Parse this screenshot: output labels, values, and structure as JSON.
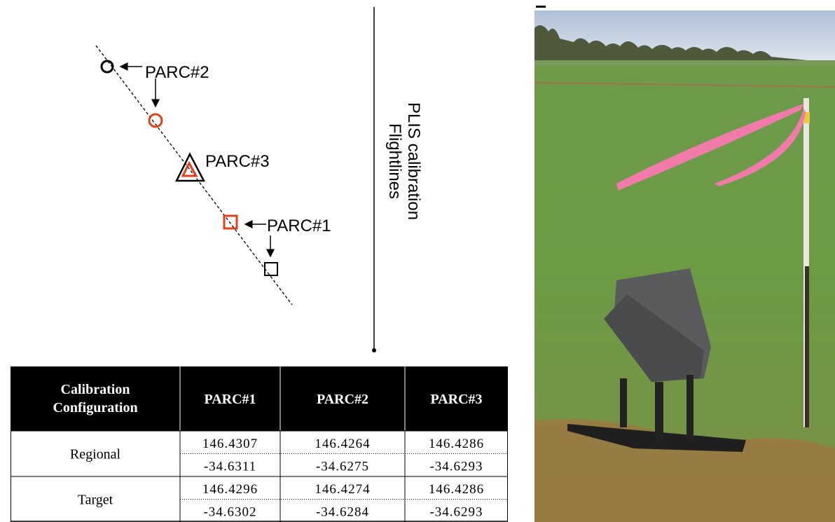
{
  "diagram": {
    "labels": {
      "parc2": "PARC#2",
      "parc3": "PARC#3",
      "parc1": "PARC#1"
    },
    "flightlines": [
      "PLIS calibration",
      "Flightlines"
    ]
  },
  "table": {
    "header": [
      [
        "Calibration",
        "Configuration"
      ],
      "PARC#1",
      "PARC#2",
      "PARC#3"
    ],
    "rows": [
      {
        "label": "Regional",
        "cells": [
          [
            "146.4307",
            "-34.6311"
          ],
          [
            "146.4264",
            "-34.6275"
          ],
          [
            "146.4286",
            "-34.6293"
          ]
        ]
      },
      {
        "label": "Target",
        "cells": [
          [
            "146.4296",
            "-34.6302"
          ],
          [
            "146.4274",
            "-34.6284"
          ],
          [
            "146.4286",
            "-34.6293"
          ]
        ]
      }
    ]
  }
}
